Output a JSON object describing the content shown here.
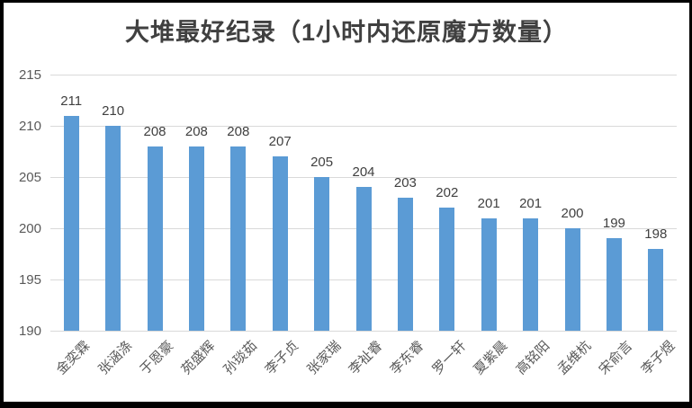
{
  "chart_data": {
    "type": "bar",
    "title": "大堆最好纪录（1小时内还原魔方数量）",
    "categories": [
      "金奕霖",
      "张涵涤",
      "于恩豪",
      "苑盛辉",
      "孙琰茹",
      "李子贞",
      "张家瑞",
      "李祉睿",
      "李东睿",
      "罗一轩",
      "夏紫晨",
      "高铭阳",
      "孟维杭",
      "宋俞言",
      "李子煜"
    ],
    "values": [
      211,
      210,
      208,
      208,
      208,
      207,
      205,
      204,
      203,
      202,
      201,
      201,
      200,
      199,
      198
    ],
    "xlabel": "",
    "ylabel": "",
    "ylim": [
      190,
      215
    ],
    "yticks": [
      190,
      195,
      200,
      205,
      210,
      215
    ],
    "grid": true,
    "legend": false,
    "data_labels": true,
    "colors": {
      "bar": "#5B9BD5",
      "gridline": "#D9D9D9",
      "title": "#404040",
      "value_label": "#404040",
      "axis_text": "#595959",
      "border": "#000000",
      "background": "#FFFFFF"
    }
  }
}
